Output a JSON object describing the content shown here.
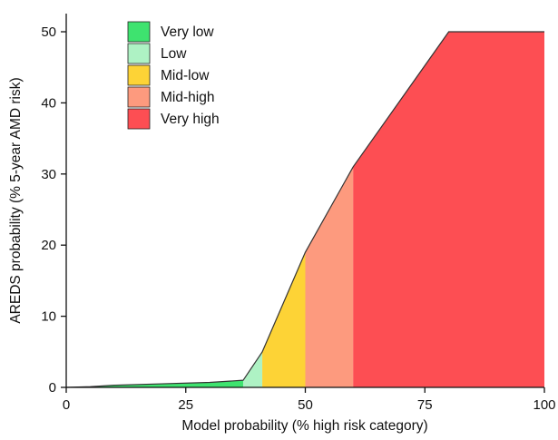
{
  "chart_data": {
    "type": "area",
    "xlabel": "Model probability (% high risk category)",
    "ylabel": "AREDS probability (% 5-year AMD risk)",
    "xlim": [
      0,
      100
    ],
    "ylim": [
      0,
      50
    ],
    "xticks": [
      0,
      25,
      50,
      75,
      100
    ],
    "yticks": [
      0,
      10,
      20,
      30,
      40,
      50
    ],
    "grid": false,
    "legend_position": "top-left",
    "curve": {
      "x": [
        0,
        5,
        10,
        20,
        30,
        37,
        41,
        50,
        60,
        70,
        80,
        90,
        100
      ],
      "y": [
        0,
        0.1,
        0.3,
        0.5,
        0.7,
        1,
        5,
        19,
        31,
        40.5,
        50,
        50,
        50
      ]
    },
    "series": [
      {
        "name": "Very low",
        "x_range": [
          0,
          37
        ],
        "color": "#3ee36f"
      },
      {
        "name": "Low",
        "x_range": [
          37,
          41
        ],
        "color": "#aef2c4"
      },
      {
        "name": "Mid-low",
        "x_range": [
          41,
          50
        ],
        "color": "#fdd336"
      },
      {
        "name": "Mid-high",
        "x_range": [
          50,
          60
        ],
        "color": "#fd9a7e"
      },
      {
        "name": "Very high",
        "x_range": [
          60,
          100
        ],
        "color": "#fd4e53"
      }
    ]
  }
}
